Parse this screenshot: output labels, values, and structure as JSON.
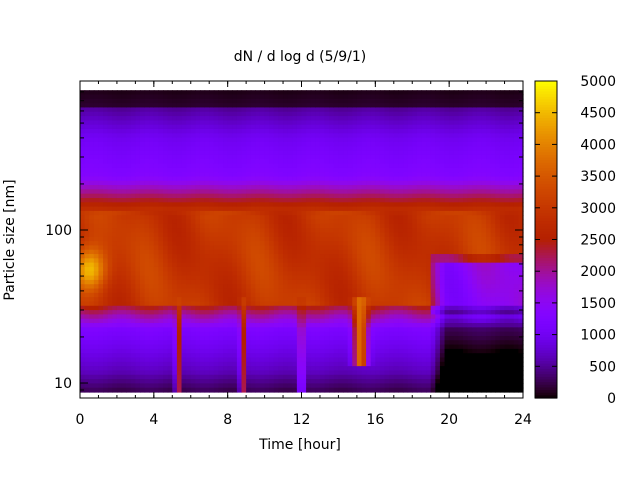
{
  "chart_data": {
    "type": "heatmap",
    "title": "dN / d log d (5/9/1)",
    "xlabel": "Time [hour]",
    "ylabel": "Particle size [nm]",
    "xlim": [
      0,
      24
    ],
    "ylim_nm": [
      8.5,
      820
    ],
    "yscale": "log",
    "x_ticks": [
      0,
      4,
      8,
      12,
      16,
      20,
      24
    ],
    "y_tick_labels": [
      {
        "value": 10,
        "label": "10"
      },
      {
        "value": 100,
        "label": "100"
      }
    ],
    "colorbar": {
      "range": [
        0,
        5000
      ],
      "ticks": [
        0,
        500,
        1000,
        1500,
        2000,
        2500,
        3000,
        3500,
        4000,
        4500,
        5000
      ],
      "colormap": "gnuplot-pm3d-rgb-7-5-15",
      "colors": {
        "low": "#000000",
        "mid_low": "#5a00c8",
        "mid": "#b000c0",
        "mid_high": "#e05000",
        "high": "#ffee00"
      }
    },
    "features": {
      "main_band_nm": [
        30,
        130
      ],
      "main_band_level": 3000,
      "hotspot": {
        "time_hour": 0.5,
        "size_nm": 55,
        "level": 4500
      },
      "narrow_spikes": [
        {
          "time_hour": 5.3,
          "level": 3200
        },
        {
          "time_hour": 8.8,
          "level": 3200
        },
        {
          "time_hour": 12.0,
          "level": 2800
        },
        {
          "time_hour": 15.2,
          "level": 3800
        }
      ],
      "band_drop_after_hour": 19,
      "upper_cutoff_nm": 820
    }
  }
}
